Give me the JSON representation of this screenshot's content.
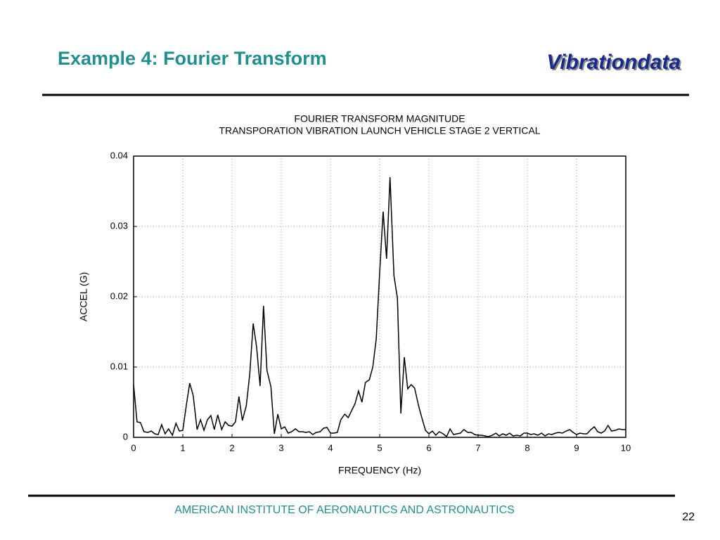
{
  "slide": {
    "title": "Example 4:  Fourier Transform",
    "logo": "Vibrationdata",
    "footer": "AMERICAN INSTITUTE OF AERONAUTICS AND ASTRONAUTICS",
    "page_number": "22"
  },
  "chart_data": {
    "type": "line",
    "title": "FOURIER TRANSFORM MAGNITUDE",
    "subtitle": "TRANSPORATION VIBRATION   LAUNCH VEHICLE STAGE 2 VERTICAL",
    "x_label": "FREQUENCY (Hz)",
    "y_label": "ACCEL (G)",
    "color": "#000000",
    "grid": true,
    "xlim": [
      0,
      10
    ],
    "xticks": [
      0,
      1,
      2,
      3,
      4,
      5,
      6,
      7,
      8,
      9,
      10
    ],
    "ylim": [
      0,
      0.04
    ],
    "yticks": [
      0,
      0.01,
      0.02,
      0.03,
      0.04
    ],
    "x": [
      0,
      0.07,
      0.14,
      0.21,
      0.29,
      0.36,
      0.43,
      0.5,
      0.57,
      0.64,
      0.71,
      0.79,
      0.86,
      0.93,
      1.0,
      1.07,
      1.14,
      1.21,
      1.29,
      1.36,
      1.43,
      1.5,
      1.57,
      1.64,
      1.71,
      1.79,
      1.86,
      1.93,
      2.0,
      2.07,
      2.14,
      2.21,
      2.29,
      2.36,
      2.43,
      2.5,
      2.57,
      2.64,
      2.71,
      2.79,
      2.86,
      2.93,
      3.0,
      3.07,
      3.14,
      3.21,
      3.29,
      3.36,
      3.43,
      3.5,
      3.57,
      3.64,
      3.71,
      3.79,
      3.86,
      3.93,
      4.0,
      4.07,
      4.14,
      4.21,
      4.29,
      4.36,
      4.43,
      4.5,
      4.57,
      4.64,
      4.71,
      4.79,
      4.86,
      4.93,
      5.0,
      5.07,
      5.14,
      5.21,
      5.29,
      5.36,
      5.43,
      5.5,
      5.57,
      5.64,
      5.71,
      5.79,
      5.86,
      5.93,
      6.0,
      6.07,
      6.14,
      6.21,
      6.29,
      6.36,
      6.43,
      6.5,
      6.57,
      6.64,
      6.71,
      6.79,
      6.86,
      6.93,
      7.0,
      7.07,
      7.14,
      7.21,
      7.29,
      7.36,
      7.43,
      7.5,
      7.57,
      7.64,
      7.71,
      7.79,
      7.86,
      7.93,
      8.0,
      8.07,
      8.14,
      8.21,
      8.29,
      8.36,
      8.43,
      8.5,
      8.57,
      8.64,
      8.71,
      8.79,
      8.86,
      8.93,
      9.0,
      9.07,
      9.14,
      9.21,
      9.29,
      9.36,
      9.43,
      9.5,
      9.57,
      9.64,
      9.71,
      9.79,
      9.86,
      9.93,
      10.0
    ],
    "values": [
      0.0075,
      0.0022,
      0.0021,
      0.0008,
      0.0007,
      0.0009,
      0.0005,
      0.0004,
      0.0018,
      0.0005,
      0.0012,
      0.0003,
      0.002,
      0.0009,
      0.001,
      0.0045,
      0.0077,
      0.006,
      0.0011,
      0.0025,
      0.001,
      0.0025,
      0.0031,
      0.0011,
      0.0032,
      0.0011,
      0.0022,
      0.0017,
      0.0016,
      0.0022,
      0.0058,
      0.0024,
      0.0045,
      0.009,
      0.0162,
      0.0128,
      0.0073,
      0.0187,
      0.0095,
      0.0072,
      0.0005,
      0.0033,
      0.0012,
      0.0015,
      0.0006,
      0.0008,
      0.0012,
      0.0008,
      0.0008,
      0.0007,
      0.0008,
      0.0004,
      0.0007,
      0.0008,
      0.0013,
      0.0014,
      0.0006,
      0.0006,
      0.0007,
      0.0025,
      0.0033,
      0.0028,
      0.0038,
      0.0048,
      0.0066,
      0.005,
      0.0078,
      0.0082,
      0.01,
      0.014,
      0.0235,
      0.0321,
      0.0254,
      0.037,
      0.023,
      0.0198,
      0.0034,
      0.0114,
      0.0069,
      0.0075,
      0.007,
      0.0045,
      0.0027,
      0.001,
      0.0005,
      0.0009,
      0.0003,
      0.0008,
      0.0005,
      0.0001,
      0.0012,
      0.0004,
      0.0005,
      0.0006,
      0.0011,
      0.0007,
      0.0007,
      0.0004,
      0.0003,
      0.0003,
      0.0002,
      0.0001,
      0.0003,
      0.0006,
      0.0002,
      0.0005,
      0.0003,
      0.0006,
      0.0002,
      0.0003,
      0.0002,
      0.0006,
      0.0006,
      0.0004,
      0.0005,
      0.0003,
      0.0006,
      0.0002,
      0.0005,
      0.0004,
      0.0006,
      0.0007,
      0.0006,
      0.0009,
      0.0011,
      0.0007,
      0.0004,
      0.0006,
      0.0005,
      0.0005,
      0.0011,
      0.0015,
      0.0008,
      0.0006,
      0.0009,
      0.0017,
      0.0009,
      0.001,
      0.0012,
      0.0011,
      0.0011
    ]
  }
}
